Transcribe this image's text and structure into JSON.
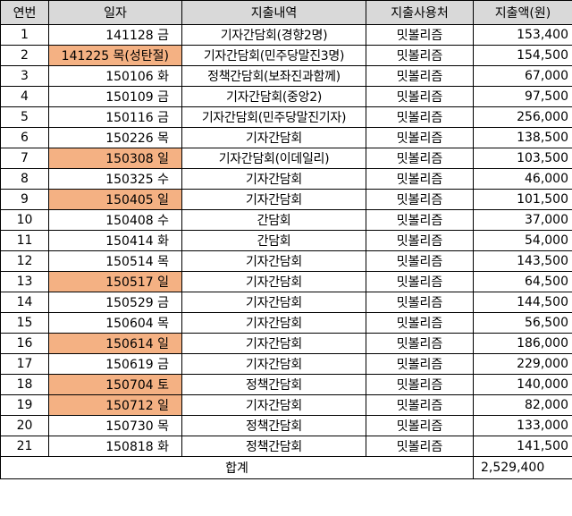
{
  "colors": {
    "header_bg": "#d9d9d9",
    "holiday_bg": "#f4b183"
  },
  "headers": [
    "연번",
    "일자",
    "지출내역",
    "지출사용처",
    "지출액(원)"
  ],
  "rows": [
    {
      "no": "1",
      "date": "141128 금",
      "desc": "기자간담회(경향2명)",
      "place": "밋볼리즘",
      "amount": "153,400",
      "highlight": false
    },
    {
      "no": "2",
      "date": "141225 목(성탄절)",
      "desc": "기자간담회(민주당말진3명)",
      "place": "밋볼리즘",
      "amount": "154,500",
      "highlight": true
    },
    {
      "no": "3",
      "date": "150106 화",
      "desc": "정책간담회(보좌진과함께)",
      "place": "밋볼리즘",
      "amount": "67,000",
      "highlight": false
    },
    {
      "no": "4",
      "date": "150109 금",
      "desc": "기자간담회(중앙2)",
      "place": "밋볼리즘",
      "amount": "97,500",
      "highlight": false
    },
    {
      "no": "5",
      "date": "150116 금",
      "desc": "기자간담회(민주당말진기자)",
      "place": "밋볼리즘",
      "amount": "256,000",
      "highlight": false
    },
    {
      "no": "6",
      "date": "150226 목",
      "desc": "기자간담회",
      "place": "밋볼리즘",
      "amount": "138,500",
      "highlight": false
    },
    {
      "no": "7",
      "date": "150308 일",
      "desc": "기자간담회(이데일리)",
      "place": "밋볼리즘",
      "amount": "103,500",
      "highlight": true
    },
    {
      "no": "8",
      "date": "150325 수",
      "desc": "기자간담회",
      "place": "밋볼리즘",
      "amount": "46,000",
      "highlight": false
    },
    {
      "no": "9",
      "date": "150405 일",
      "desc": "기자간담회",
      "place": "밋볼리즘",
      "amount": "101,500",
      "highlight": true
    },
    {
      "no": "10",
      "date": "150408 수",
      "desc": "간담회",
      "place": "밋볼리즘",
      "amount": "37,000",
      "highlight": false
    },
    {
      "no": "11",
      "date": "150414 화",
      "desc": "간담회",
      "place": "밋볼리즘",
      "amount": "54,000",
      "highlight": false
    },
    {
      "no": "12",
      "date": "150514 목",
      "desc": "기자간담회",
      "place": "밋볼리즘",
      "amount": "143,500",
      "highlight": false
    },
    {
      "no": "13",
      "date": "150517 일",
      "desc": "기자간담회",
      "place": "밋볼리즘",
      "amount": "64,500",
      "highlight": true
    },
    {
      "no": "14",
      "date": "150529 금",
      "desc": "기자간담회",
      "place": "밋볼리즘",
      "amount": "144,500",
      "highlight": false
    },
    {
      "no": "15",
      "date": "150604 목",
      "desc": "기자간담회",
      "place": "밋볼리즘",
      "amount": "56,500",
      "highlight": false
    },
    {
      "no": "16",
      "date": "150614 일",
      "desc": "기자간담회",
      "place": "밋볼리즘",
      "amount": "186,000",
      "highlight": true
    },
    {
      "no": "17",
      "date": "150619 금",
      "desc": "기자간담회",
      "place": "밋볼리즘",
      "amount": "229,000",
      "highlight": false
    },
    {
      "no": "18",
      "date": "150704 토",
      "desc": "정책간담회",
      "place": "밋볼리즘",
      "amount": "140,000",
      "highlight": true
    },
    {
      "no": "19",
      "date": "150712 일",
      "desc": "기자간담회",
      "place": "밋볼리즘",
      "amount": "82,000",
      "highlight": true
    },
    {
      "no": "20",
      "date": "150730 목",
      "desc": "정책간담회",
      "place": "밋볼리즘",
      "amount": "133,000",
      "highlight": false
    },
    {
      "no": "21",
      "date": "150818 화",
      "desc": "정책간담회",
      "place": "밋볼리즘",
      "amount": "141,500",
      "highlight": false
    }
  ],
  "total": {
    "label": "합계",
    "amount": "2,529,400"
  }
}
